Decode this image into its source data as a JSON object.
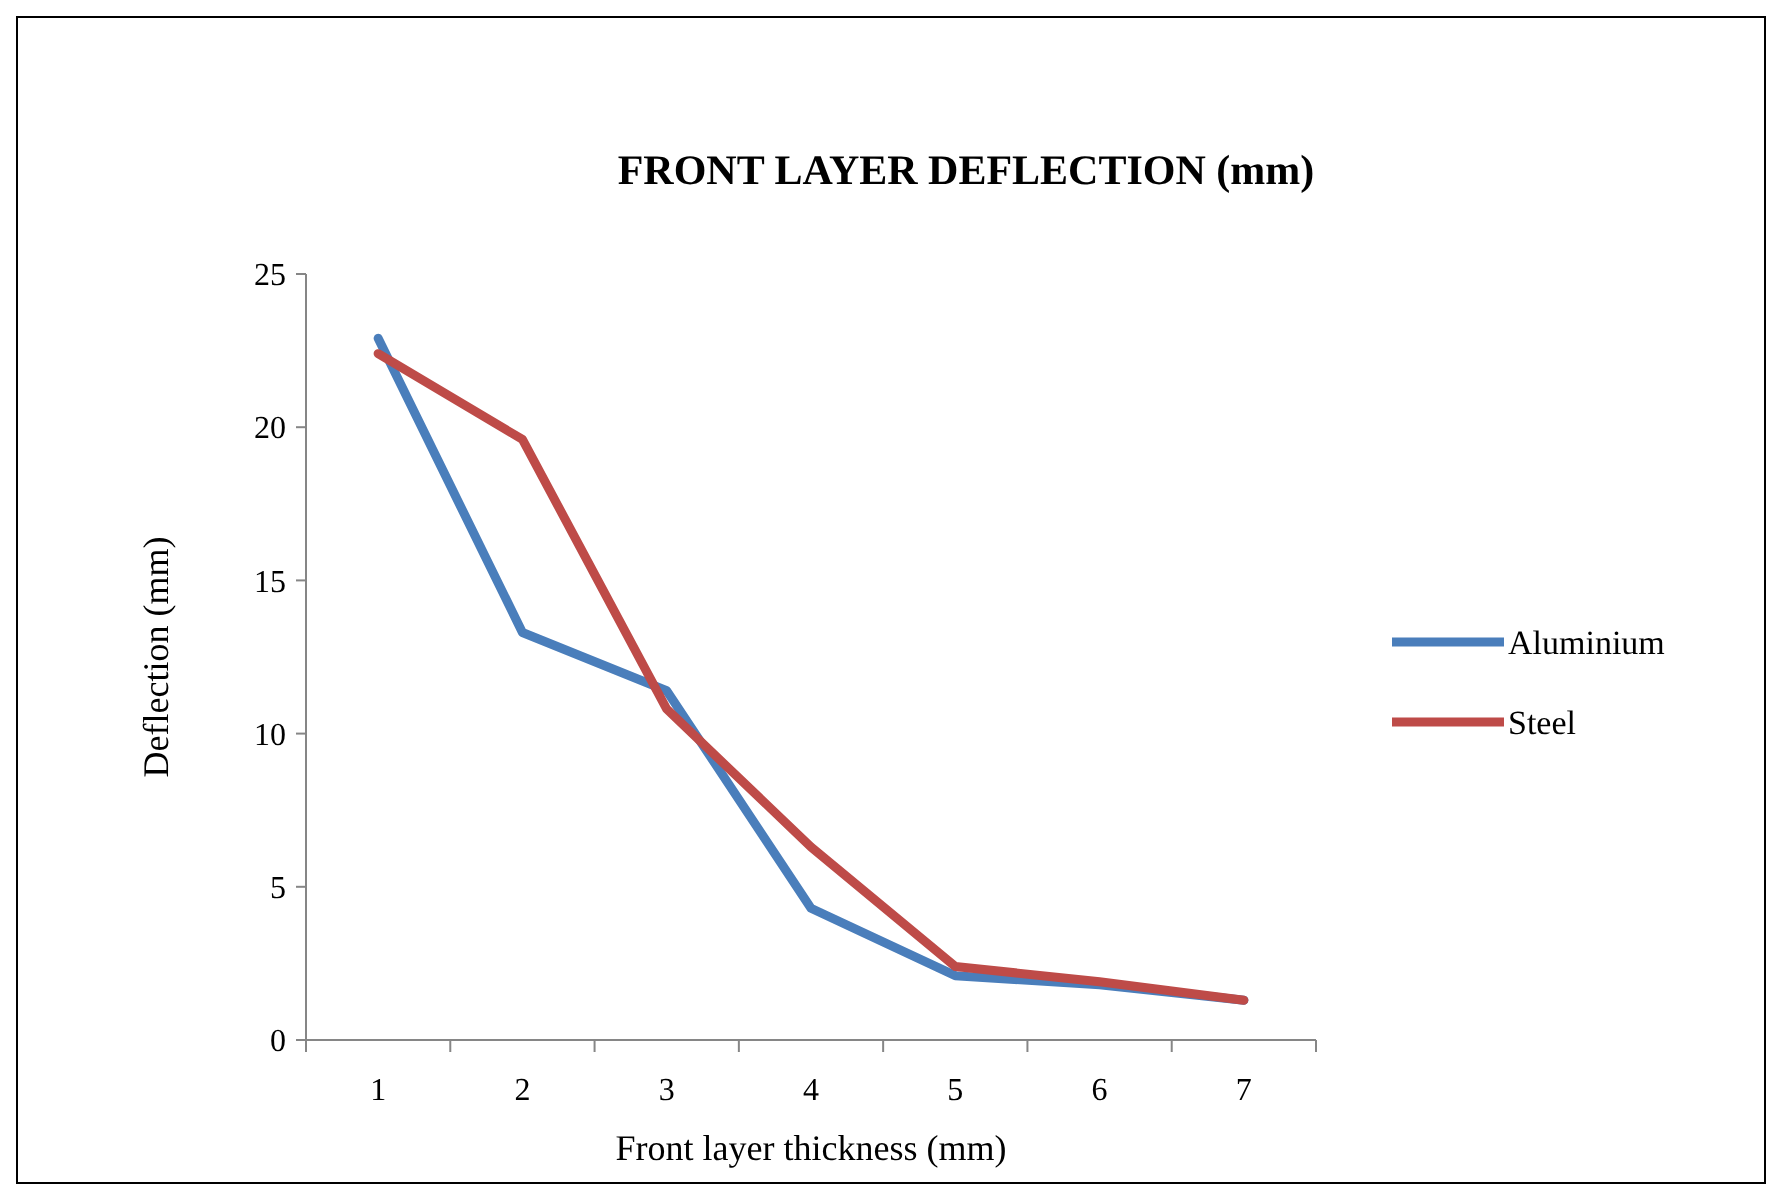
{
  "chart_data": {
    "type": "line",
    "title": "FRONT LAYER DEFLECTION (mm)",
    "xlabel": "Front layer thickness (mm)",
    "ylabel": "Deflection (mm)",
    "categories": [
      "1",
      "2",
      "3",
      "4",
      "5",
      "6",
      "7"
    ],
    "series": [
      {
        "name": "Aluminium",
        "color": "#4a7ebb",
        "values": [
          22.9,
          13.3,
          11.4,
          4.3,
          2.1,
          1.8,
          1.3
        ]
      },
      {
        "name": "Steel",
        "color": "#be4b48",
        "values": [
          22.4,
          19.6,
          10.8,
          6.3,
          2.4,
          1.9,
          1.3
        ]
      }
    ],
    "ylim": [
      0,
      25
    ],
    "yticks": [
      0,
      5,
      10,
      15,
      20,
      25
    ],
    "grid": false,
    "legend": "right",
    "marker": "none",
    "line_style": "solid"
  }
}
